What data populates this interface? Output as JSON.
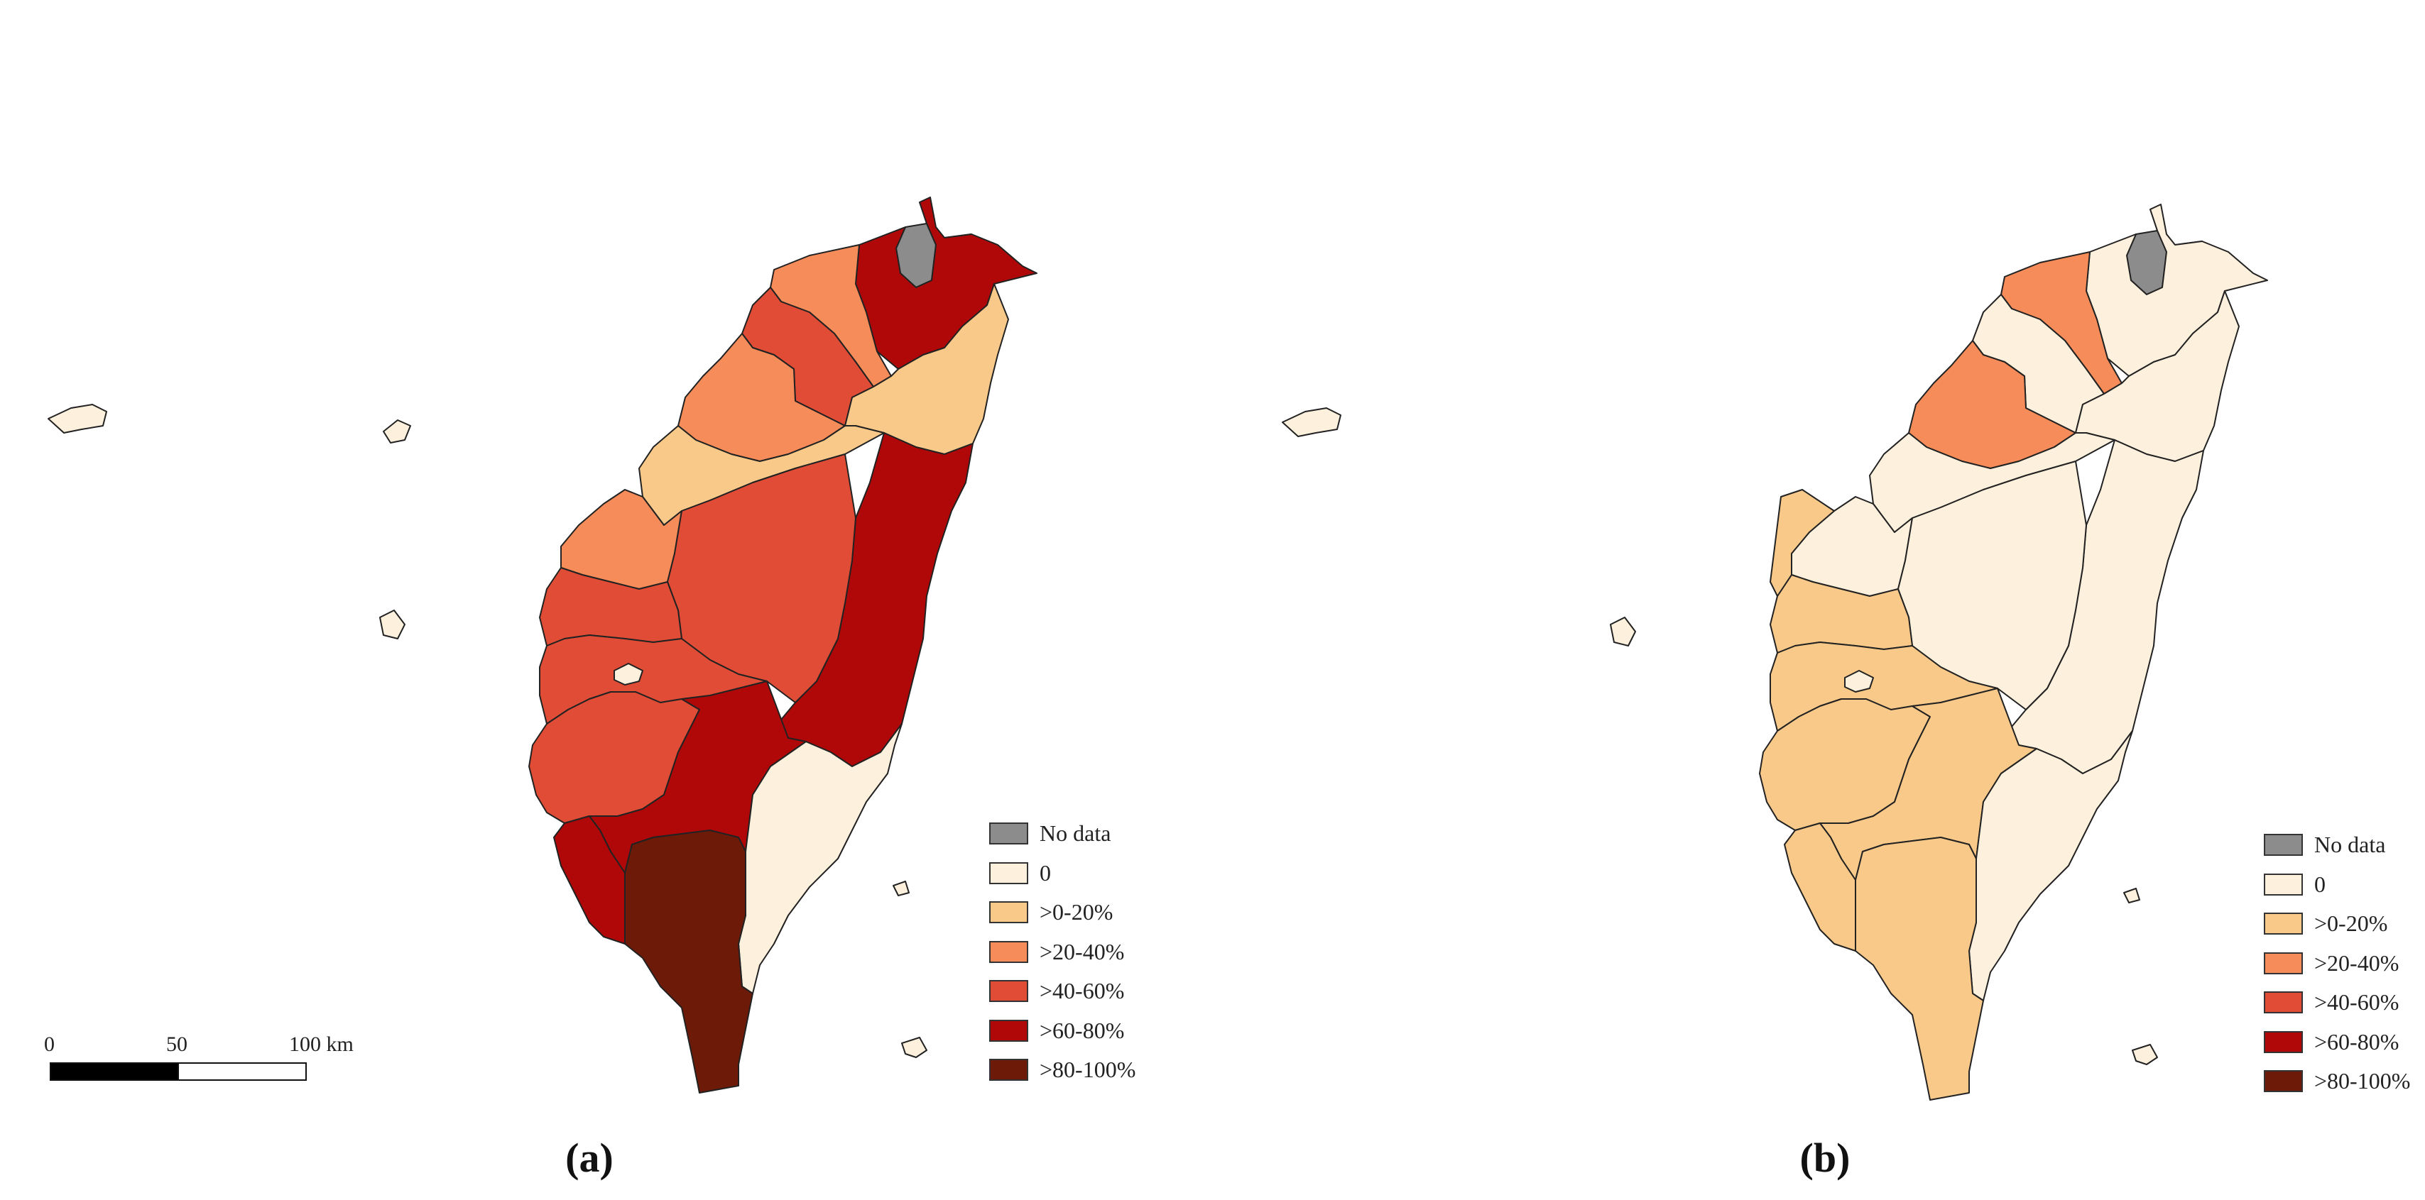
{
  "panels": [
    {
      "caption": "(a)"
    },
    {
      "caption": "(b)"
    }
  ],
  "legend": [
    {
      "label": "No data",
      "color": "#8c8c8c"
    },
    {
      "label": "0",
      "color": "#fdf0dc"
    },
    {
      "label": ">0-20%",
      "color": "#f9c98a"
    },
    {
      "label": ">20-40%",
      "color": "#f58c59"
    },
    {
      "label": ">40-60%",
      "color": "#e04c35"
    },
    {
      "label": ">60-80%",
      "color": "#b00808"
    },
    {
      "label": ">80-100%",
      "color": "#6d1a08"
    }
  ],
  "scale": {
    "ticks": [
      "0",
      "50",
      "100 km"
    ]
  }
}
